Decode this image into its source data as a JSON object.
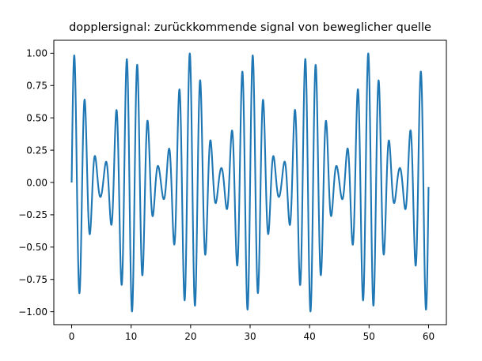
{
  "chart_data": {
    "type": "line",
    "title": "dopplersignal: zurückkommende signal von beweglicher quelle",
    "xlabel": "",
    "ylabel": "",
    "xlim": [
      -3,
      63
    ],
    "ylim": [
      -1.1,
      1.1
    ],
    "x_ticks": [
      0,
      10,
      20,
      30,
      40,
      50,
      60
    ],
    "x_tick_labels": [
      "0",
      "10",
      "20",
      "30",
      "40",
      "50",
      "60"
    ],
    "y_ticks": [
      1.0,
      0.75,
      0.5,
      0.25,
      0.0,
      -0.25,
      -0.5,
      -0.75,
      -1.0
    ],
    "y_tick_labels": [
      "1.00",
      "0.75",
      "0.50",
      "0.25",
      "0.00",
      "−0.25",
      "−0.50",
      "−0.75",
      "−1.00"
    ],
    "grid": false,
    "legend": "none",
    "series": [
      {
        "color": "#1f77b4",
        "sampled": {
          "x_start": 0,
          "x_end": 60,
          "carrier_period": 1.765,
          "envelope_period": 10,
          "envelope_min": 0.11,
          "envelope_max": 1.0,
          "envelope_peak_x": 0
        }
      }
    ]
  }
}
